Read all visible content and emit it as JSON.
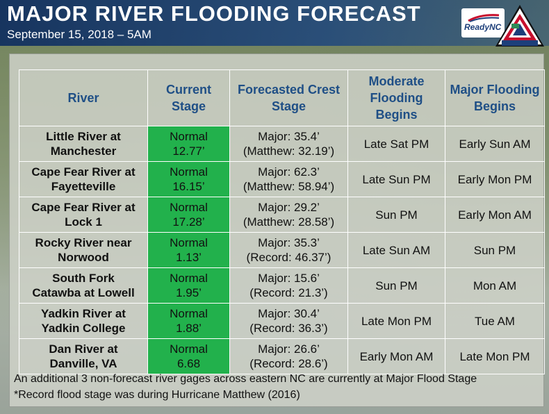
{
  "header": {
    "title": "MAJOR RIVER FLOODING FORECAST",
    "subtitle": "September 15, 2018 – 5AM",
    "logos": {
      "ready_nc": "ReadyNC",
      "emergency_management_top": "EMERGENCY",
      "emergency_management_side": "MANAGEMENT",
      "emergency_management_state": "NORTH CAROLINA"
    }
  },
  "table": {
    "columns": [
      "River",
      "Current Stage",
      "Forecasted Crest Stage",
      "Moderate Flooding Begins",
      "Major Flooding Begins"
    ],
    "rows": [
      {
        "river_line1": "Little River at",
        "river_line2": "Manchester",
        "current_line1": "Normal",
        "current_line2": "12.77’",
        "crest_line1": "Major: 35.4’",
        "crest_line2": "(Matthew: 32.19’)",
        "moderate": "Late Sat PM",
        "major": "Early Sun AM"
      },
      {
        "river_line1": "Cape Fear River at",
        "river_line2": "Fayetteville",
        "current_line1": "Normal",
        "current_line2": "16.15’",
        "crest_line1": "Major: 62.3’",
        "crest_line2": "(Matthew: 58.94’)",
        "moderate": "Late Sun PM",
        "major": "Early Mon PM"
      },
      {
        "river_line1": "Cape Fear River at",
        "river_line2": "Lock 1",
        "current_line1": "Normal",
        "current_line2": "17.28’",
        "crest_line1": "Major: 29.2’",
        "crest_line2": "(Matthew: 28.58’)",
        "moderate": "Sun PM",
        "major": "Early Mon AM"
      },
      {
        "river_line1": "Rocky River near",
        "river_line2": "Norwood",
        "current_line1": "Normal",
        "current_line2": "1.13’",
        "crest_line1": "Major: 35.3’",
        "crest_line2": "(Record: 46.37’)",
        "moderate": "Late Sun AM",
        "major": "Sun PM"
      },
      {
        "river_line1": "South Fork",
        "river_line2": "Catawba at Lowell",
        "current_line1": "Normal",
        "current_line2": "1.95’",
        "crest_line1": "Major: 15.6’",
        "crest_line2": "(Record: 21.3’)",
        "moderate": "Sun PM",
        "major": "Mon AM"
      },
      {
        "river_line1": "Yadkin River at",
        "river_line2": "Yadkin College",
        "current_line1": "Normal",
        "current_line2": "1.88’",
        "crest_line1": "Major: 30.4’",
        "crest_line2": "(Record: 36.3’)",
        "moderate": "Late Mon PM",
        "major": "Tue AM"
      },
      {
        "river_line1": "Dan River at",
        "river_line2": "Danville, VA",
        "current_line1": "Normal",
        "current_line2": "6.68",
        "crest_line1": "Major: 26.6’",
        "crest_line2": "(Record: 28.6’)",
        "moderate": "Early Mon AM",
        "major": "Late Mon PM"
      }
    ]
  },
  "footnotes": {
    "line1": "An additional 3 non-forecast river gages across eastern NC are currently at Major Flood Stage",
    "line2": "*Record flood stage was during Hurricane Matthew (2016)"
  },
  "colors": {
    "header_bg": "#14325f",
    "title_text": "#ffffff",
    "column_header_text": "#1f4f86",
    "normal_stage_bg": "#22b14c",
    "panel_bg": "#ced2c8"
  }
}
